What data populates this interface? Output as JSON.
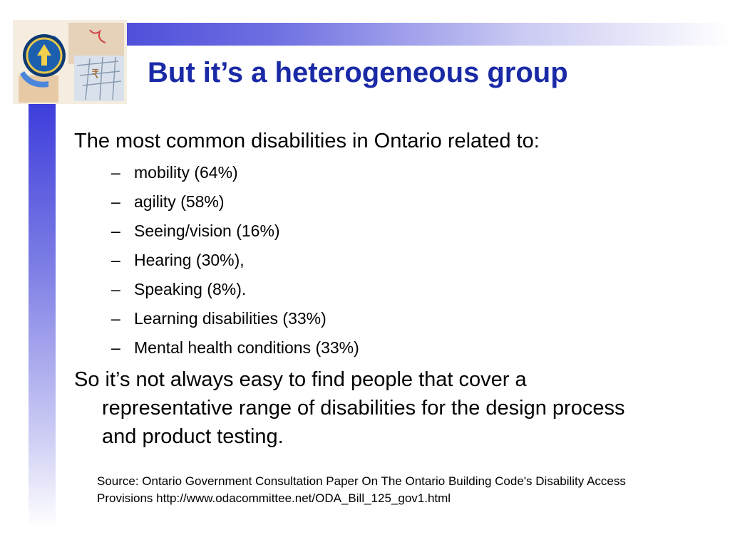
{
  "slide": {
    "title": "But it’s a heterogeneous group",
    "intro": "The most common disabilities in Ontario related to:",
    "bullets": [
      "mobility (64%)",
      "agility (58%)",
      "Seeing/vision (16%)",
      "Hearing (30%),",
      "Speaking (8%).",
      "Learning disabilities (33%)",
      "Mental health conditions (33%)"
    ],
    "bullet_marker": "–",
    "conclusion": "So it’s not always easy to find people that cover a representative range of disabilities for the design process and product testing.",
    "source": "Source: Ontario Government Consultation Paper On The Ontario Building Code's Disability Access Provisions http://www.odacommittee.net/ODA_Bill_125_gov1.html"
  },
  "colors": {
    "title": "#1a2aa6",
    "accent_bar": "#3a3ad6"
  },
  "icons": {
    "logo": "globe-collage-logo-icon"
  }
}
